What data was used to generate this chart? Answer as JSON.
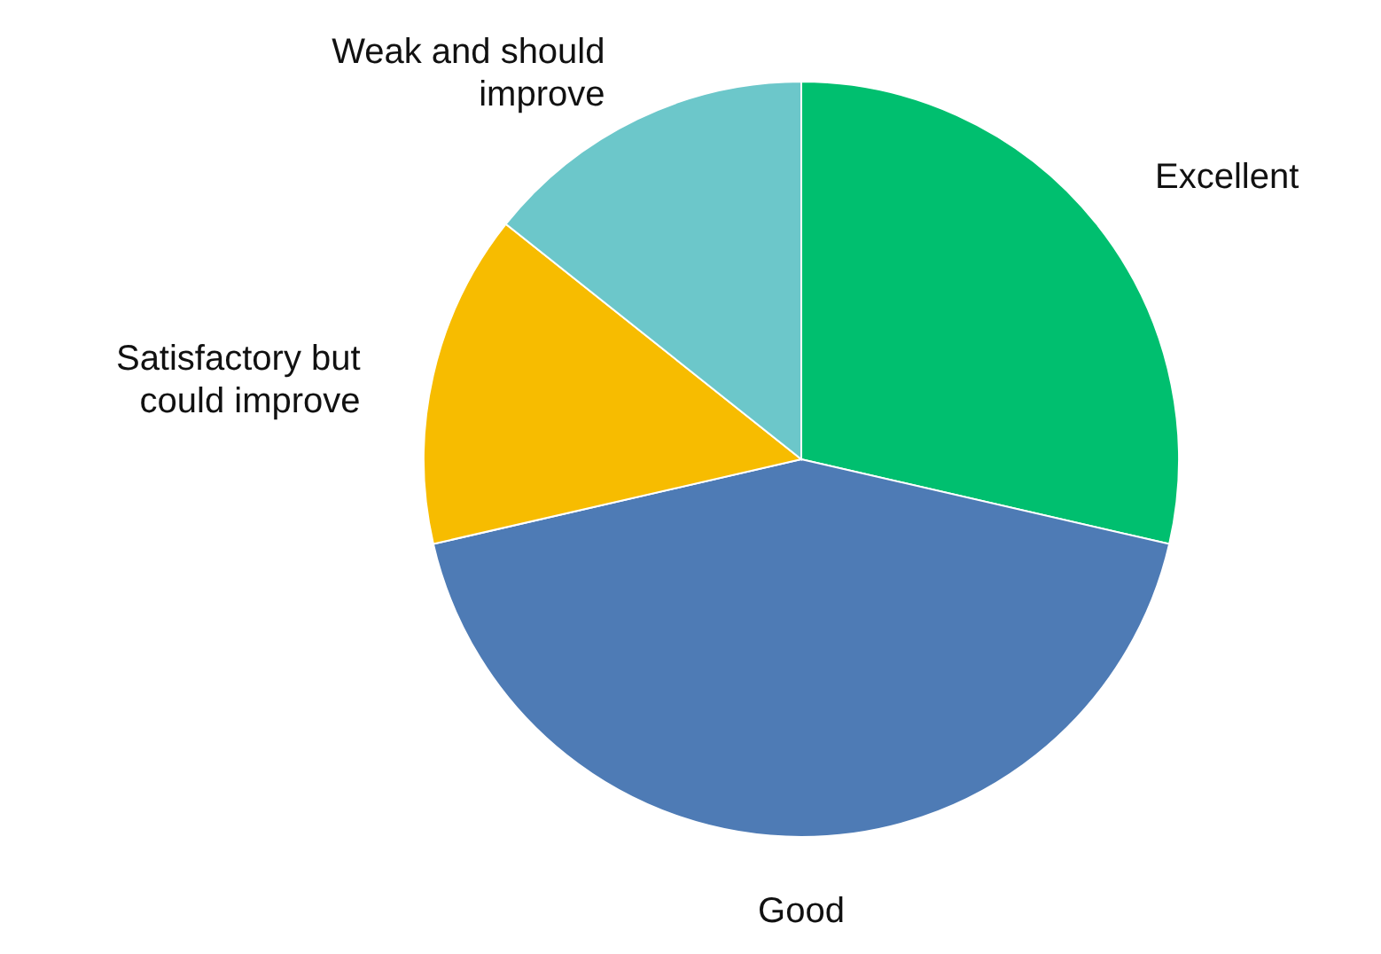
{
  "chart_data": {
    "type": "pie",
    "categories": [
      "Excellent",
      "Good",
      "Satisfactory but could improve",
      "Weak and should improve"
    ],
    "values": [
      28.6,
      42.8,
      14.3,
      14.3
    ],
    "colors": [
      "#00bf6f",
      "#4e7bb5",
      "#f7bc00",
      "#6cc7ca"
    ]
  }
}
